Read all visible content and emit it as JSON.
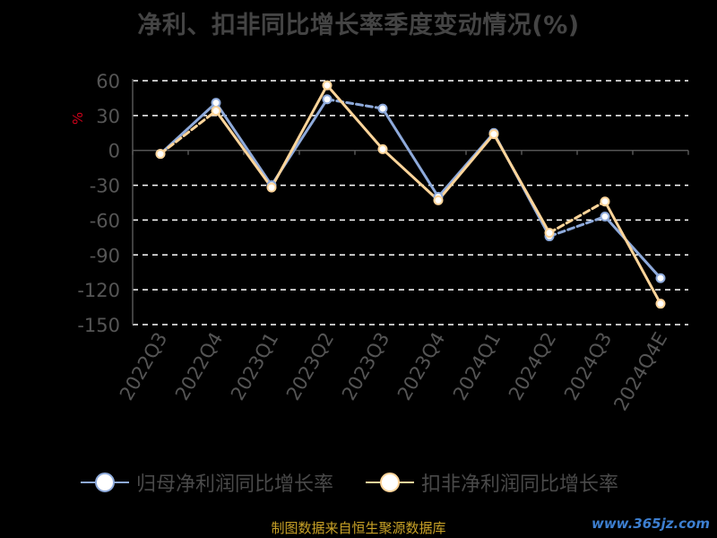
{
  "title": "净利、扣非同比增长率季度变动情况(%)",
  "source": "制图数据来自恒生聚源数据库",
  "watermark": "www.365jz.com",
  "colors": {
    "background": "#000000",
    "series1": "#8eaadb",
    "series2": "#ffd59a",
    "grid": "#ffffff",
    "axis_text": "#555555",
    "unit_text": "#d0021b"
  },
  "chart_data": {
    "type": "line",
    "title": "净利、扣非同比增长率季度变动情况(%)",
    "ylabel": "%",
    "xlabel": "",
    "categories": [
      "2022Q3",
      "2022Q4",
      "2023Q1",
      "2023Q2",
      "2023Q3",
      "2023Q4",
      "2024Q1",
      "2024Q2",
      "2024Q3",
      "2024Q4E"
    ],
    "yticks": [
      60,
      30,
      0,
      -30,
      -60,
      -90,
      -120,
      -150
    ],
    "ylim": [
      -150,
      60
    ],
    "grid": true,
    "legend_position": "bottom",
    "series": [
      {
        "name": "归母净利润同比增长率",
        "values": [
          -3,
          41,
          -30,
          44,
          36,
          -40,
          15,
          -74,
          -57,
          -110
        ],
        "dashed_segments": [
          3,
          7
        ]
      },
      {
        "name": "扣非净利润同比增长率",
        "values": [
          -3,
          34,
          -32,
          56,
          1,
          -43,
          14,
          -71,
          -44,
          -132
        ],
        "dashed_segments": [
          0,
          7
        ]
      }
    ]
  }
}
